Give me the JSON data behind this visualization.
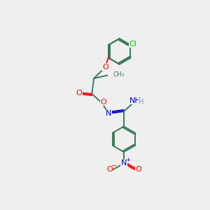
{
  "background_color": "#efefef",
  "bond_color": "#3a7a5a",
  "atom_colors": {
    "O": "#ff0000",
    "N": "#0000cc",
    "Cl": "#00cc00",
    "C": "#3a7a5a",
    "H": "#7a9a9a"
  },
  "ring_r": 0.62,
  "lw": 1.4,
  "fontsize": 7.5
}
